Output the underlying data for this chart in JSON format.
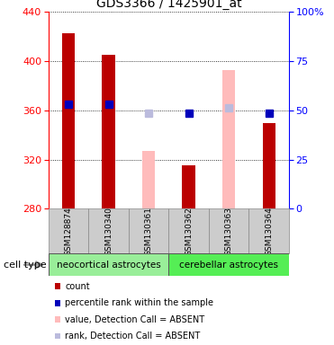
{
  "title": "GDS3366 / 1425901_at",
  "samples": [
    "GSM128874",
    "GSM130340",
    "GSM130361",
    "GSM130362",
    "GSM130363",
    "GSM130364"
  ],
  "ylim_left": [
    280,
    440
  ],
  "yticks_left": [
    280,
    320,
    360,
    400,
    440
  ],
  "yticks_right": [
    0,
    25,
    50,
    75,
    100
  ],
  "ytick_labels_right": [
    "0",
    "25",
    "50",
    "75",
    "100%"
  ],
  "bar_values": [
    423,
    405,
    null,
    315,
    null,
    350
  ],
  "absent_bar_values": [
    null,
    null,
    327,
    null,
    393,
    null
  ],
  "percentile_present": [
    365,
    365,
    null,
    358,
    null,
    358
  ],
  "percentile_absent": [
    null,
    null,
    358,
    null,
    362,
    null
  ],
  "color_bar_present": "#bb0000",
  "color_bar_absent": "#ffbbbb",
  "color_pct_present": "#0000bb",
  "color_pct_absent": "#bbbbdd",
  "group1_label": "neocortical astrocytes",
  "group2_label": "cerebellar astrocytes",
  "group1_color": "#99ee99",
  "group2_color": "#55ee55",
  "cell_type_label": "cell type",
  "base_value": 280,
  "legend_labels": [
    "count",
    "percentile rank within the sample",
    "value, Detection Call = ABSENT",
    "rank, Detection Call = ABSENT"
  ],
  "legend_colors": [
    "#bb0000",
    "#0000bb",
    "#ffbbbb",
    "#bbbbdd"
  ],
  "bar_width": 0.32,
  "marker_size": 6
}
